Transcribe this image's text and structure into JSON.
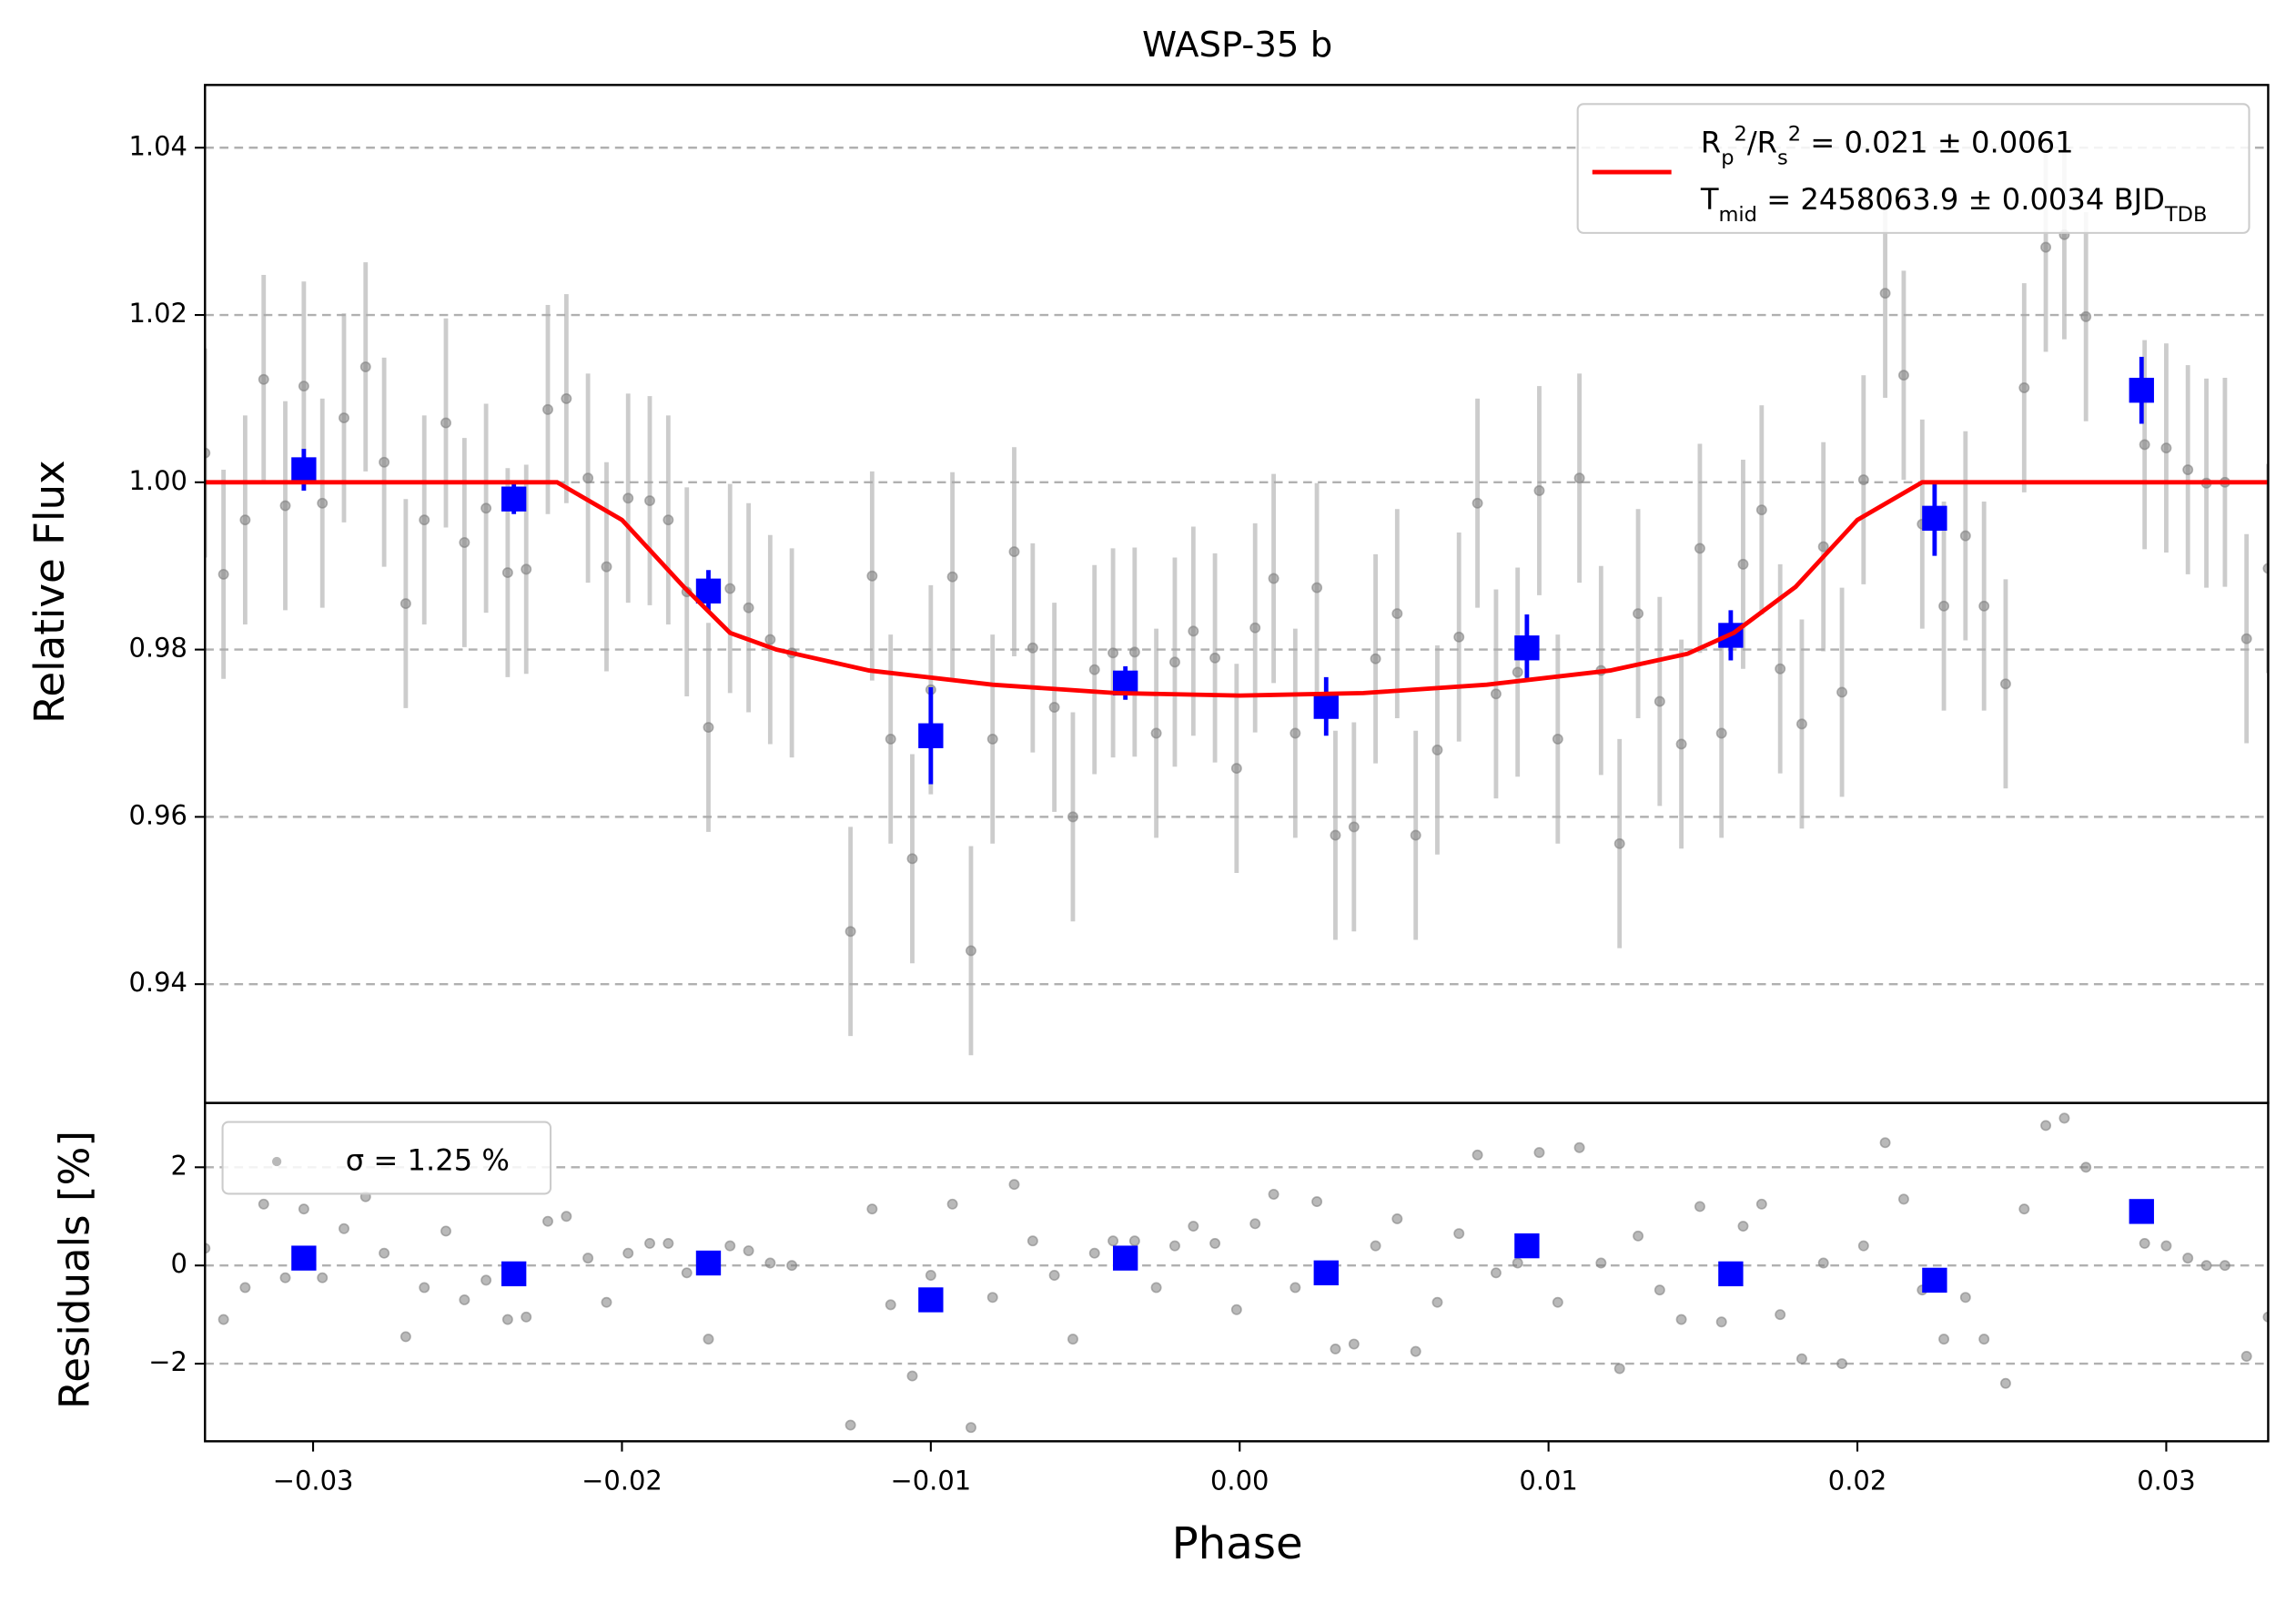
{
  "chart_data": [
    {
      "type": "errorbar",
      "title": "WASP-35 b",
      "ylabel": "Relative Flux",
      "xlim": [
        -0.0335,
        0.0333
      ],
      "ylim": [
        0.9258,
        1.0475
      ],
      "yticks": [
        1.04,
        1.02,
        {
          "value": 1.0,
          "label": "1.00"
        },
        0.98,
        0.96,
        0.94
      ],
      "grid": true,
      "legend": "upper right",
      "series": [
        {
          "color": "#808080",
          "marker": "circle",
          "error": 0.0125,
          "x": [
            -0.0335,
            -0.0329,
            -0.0322,
            -0.0316,
            -0.0309,
            -0.0303,
            -0.0297,
            -0.029,
            -0.0283,
            -0.0277,
            -0.027,
            -0.0264,
            -0.0257,
            -0.0251,
            -0.0244,
            -0.0237,
            -0.0231,
            -0.0224,
            -0.0218,
            -0.0211,
            -0.0205,
            -0.0198,
            -0.0191,
            -0.0185,
            -0.0179,
            -0.0172,
            -0.0165,
            -0.0159,
            -0.0152,
            -0.0145,
            -0.0126,
            -0.0119,
            -0.0113,
            -0.0106,
            -0.01,
            -0.0093,
            -0.0087,
            -0.008,
            -0.0073,
            -0.0067,
            -0.006,
            -0.0054,
            -0.0047,
            -0.0041,
            -0.0034,
            -0.0027,
            -0.0021,
            -0.0015,
            -0.0008,
            -0.0001,
            0.0005,
            0.0011,
            0.0018,
            0.0025,
            0.0031,
            0.0037,
            0.0044,
            0.0051,
            0.0057,
            0.0064,
            0.0071,
            0.0077,
            0.0083,
            0.009,
            0.0097,
            0.0103,
            0.011,
            0.0117,
            0.0123,
            0.0129,
            0.0136,
            0.0143,
            0.0149,
            0.0156,
            0.0163,
            0.0169,
            0.0175,
            0.0182,
            0.0189,
            0.0195,
            0.0202,
            0.0209,
            0.0215,
            0.0221,
            0.0228,
            0.0235,
            0.0241,
            0.0248,
            0.0254,
            0.0261,
            0.0267,
            0.0274,
            0.0293,
            0.03,
            0.0307,
            0.0313,
            0.0319,
            0.0326,
            0.0333
          ],
          "values": [
            1.0035,
            0.989,
            0.9955,
            1.0123,
            0.9972,
            1.0115,
            0.9975,
            1.0077,
            1.0138,
            1.0024,
            0.9855,
            0.9955,
            1.0071,
            0.9928,
            0.9969,
            0.9892,
            0.9896,
            1.0087,
            1.01,
            1.0005,
            0.9899,
            0.9981,
            0.9978,
            0.9955,
            0.9869,
            0.9707,
            0.9873,
            0.985,
            0.9812,
            0.9796,
            0.9463,
            0.9888,
            0.9693,
            0.955,
            0.9752,
            0.9887,
            0.944,
            0.9693,
            0.9917,
            0.9802,
            0.9731,
            0.96,
            0.9776,
            0.9796,
            0.9797,
            0.97,
            0.9785,
            0.9822,
            0.979,
            0.9658,
            0.9826,
            0.9885,
            0.97,
            0.9874,
            0.9578,
            0.9588,
            0.9789,
            0.9843,
            0.9578,
            0.968,
            0.9815,
            0.9975,
            0.9747,
            0.9773,
            0.999,
            0.9693,
            1.0005,
            0.9775,
            0.9568,
            0.9843,
            0.9738,
            0.9687,
            0.9921,
            0.97,
            0.9902,
            0.9967,
            0.9777,
            0.9711,
            0.9923,
            0.9749,
            1.0003,
            1.0226,
            1.0128,
            0.995,
            0.9852,
            0.9936,
            0.9852,
            0.9759,
            1.0113,
            1.0281,
            1.0296,
            1.0198,
            1.0045,
            1.0041,
            1.0015,
            0.9999,
            1.0,
            0.9813,
            0.9897
          ]
        },
        {
          "color": "#0000ff",
          "marker": "square",
          "x": [
            -0.0303,
            -0.0235,
            -0.0172,
            -0.01,
            -0.0037,
            0.0028,
            0.0093,
            0.0159,
            0.0225,
            0.0292
          ],
          "values": [
            1.0015,
            0.998,
            0.987,
            0.9697,
            0.976,
            0.9732,
            0.9802,
            0.9817,
            0.9957,
            1.011
          ],
          "errors": [
            0.0025,
            0.0018,
            0.0025,
            0.0058,
            0.002,
            0.0035,
            0.004,
            0.003,
            0.0045,
            0.004
          ]
        },
        {
          "color": "#ff0000",
          "marker": "line",
          "name": "R_p^2/R_s^2 = 0.021 ± 0.0061\nT_{mid} = 2458063.9 ± 0.0034 BJD_{TDB}",
          "x": [
            -0.0335,
            -0.0221,
            -0.02,
            -0.018,
            -0.0165,
            -0.015,
            -0.012,
            -0.008,
            -0.004,
            0,
            0.004,
            0.008,
            0.012,
            0.0145,
            0.016,
            0.018,
            0.02,
            0.0221,
            0.0333
          ],
          "values": [
            1,
            1,
            0.9955,
            0.9875,
            0.982,
            0.98,
            0.9775,
            0.9758,
            0.9748,
            0.9745,
            0.9748,
            0.9758,
            0.9775,
            0.9795,
            0.982,
            0.9875,
            0.9955,
            1,
            1
          ]
        }
      ]
    },
    {
      "type": "errorbar",
      "ylabel": "Residuals [%]",
      "xlabel": "Phase",
      "xlim": [
        -0.0335,
        0.0333
      ],
      "ylim": [
        -3.58,
        3.31
      ],
      "xticks": [
        {
          "value": -0.03,
          "label": "−0.03"
        },
        {
          "value": -0.02,
          "label": "−0.02"
        },
        {
          "value": -0.01,
          "label": "−0.01"
        },
        {
          "value": 0,
          "label": "0.00"
        },
        0.01,
        0.02,
        0.03
      ],
      "yticks": [
        2,
        0,
        {
          "value": -2,
          "label": "−2"
        }
      ],
      "grid": true,
      "legend": "upper left",
      "series": [
        {
          "color": "#808080",
          "marker": "circle",
          "name": "σ = 1.25 %",
          "x": [
            -0.0335,
            -0.0329,
            -0.0322,
            -0.0316,
            -0.0309,
            -0.0303,
            -0.0297,
            -0.029,
            -0.0283,
            -0.0277,
            -0.027,
            -0.0264,
            -0.0257,
            -0.0251,
            -0.0244,
            -0.0237,
            -0.0231,
            -0.0224,
            -0.0218,
            -0.0211,
            -0.0205,
            -0.0198,
            -0.0191,
            -0.0185,
            -0.0179,
            -0.0172,
            -0.0165,
            -0.0159,
            -0.0152,
            -0.0145,
            -0.0126,
            -0.0119,
            -0.0113,
            -0.0106,
            -0.01,
            -0.0093,
            -0.0087,
            -0.008,
            -0.0073,
            -0.0067,
            -0.006,
            -0.0054,
            -0.0047,
            -0.0041,
            -0.0034,
            -0.0027,
            -0.0021,
            -0.0015,
            -0.0008,
            -0.0001,
            0.0005,
            0.0011,
            0.0018,
            0.0025,
            0.0031,
            0.0037,
            0.0044,
            0.0051,
            0.0057,
            0.0064,
            0.0071,
            0.0077,
            0.0083,
            0.009,
            0.0097,
            0.0103,
            0.011,
            0.0117,
            0.0123,
            0.0129,
            0.0136,
            0.0143,
            0.0149,
            0.0156,
            0.0163,
            0.0169,
            0.0175,
            0.0182,
            0.0189,
            0.0195,
            0.0202,
            0.0209,
            0.0215,
            0.0221,
            0.0228,
            0.0235,
            0.0241,
            0.0248,
            0.0254,
            0.0261,
            0.0267,
            0.0274,
            0.0293,
            0.03,
            0.0307,
            0.0313,
            0.0319,
            0.0326,
            0.0333
          ],
          "values": [
            0.35,
            -1.1,
            -0.45,
            1.25,
            -0.25,
            1.15,
            -0.25,
            0.75,
            1.4,
            0.25,
            -1.45,
            -0.45,
            0.7,
            -0.7,
            -0.3,
            -1.1,
            -1.05,
            0.9,
            1.0,
            0.15,
            -0.75,
            0.25,
            0.45,
            0.45,
            -0.15,
            -1.5,
            0.4,
            0.3,
            0.05,
            0.0,
            -3.25,
            1.15,
            -0.8,
            -2.25,
            -0.2,
            1.25,
            -3.3,
            -0.65,
            1.65,
            0.5,
            -0.2,
            -1.5,
            0.25,
            0.5,
            0.5,
            -0.45,
            0.4,
            0.8,
            0.45,
            -0.9,
            0.85,
            1.45,
            -0.45,
            1.3,
            -1.7,
            -1.6,
            0.4,
            0.95,
            -1.75,
            -0.75,
            0.65,
            2.25,
            -0.15,
            0.05,
            2.3,
            -0.75,
            2.4,
            0.05,
            -2.1,
            0.6,
            -0.5,
            -1.1,
            1.2,
            -1.15,
            0.8,
            1.25,
            -1.0,
            -1.9,
            0.05,
            -2.0,
            0.4,
            2.5,
            1.35,
            -0.5,
            -1.5,
            -0.65,
            -1.5,
            -2.4,
            1.15,
            2.85,
            3.0,
            2.0,
            0.45,
            0.4,
            0.15,
            0.0,
            0.0,
            -1.85,
            -1.05
          ]
        },
        {
          "color": "#0000ff",
          "marker": "square",
          "x": [
            -0.0303,
            -0.0235,
            -0.0172,
            -0.01,
            -0.0037,
            0.0028,
            0.0093,
            0.0159,
            0.0225,
            0.0292
          ],
          "values": [
            0.15,
            -0.17,
            0.05,
            -0.7,
            0.15,
            -0.15,
            0.4,
            -0.17,
            -0.3,
            1.1
          ]
        }
      ]
    }
  ]
}
